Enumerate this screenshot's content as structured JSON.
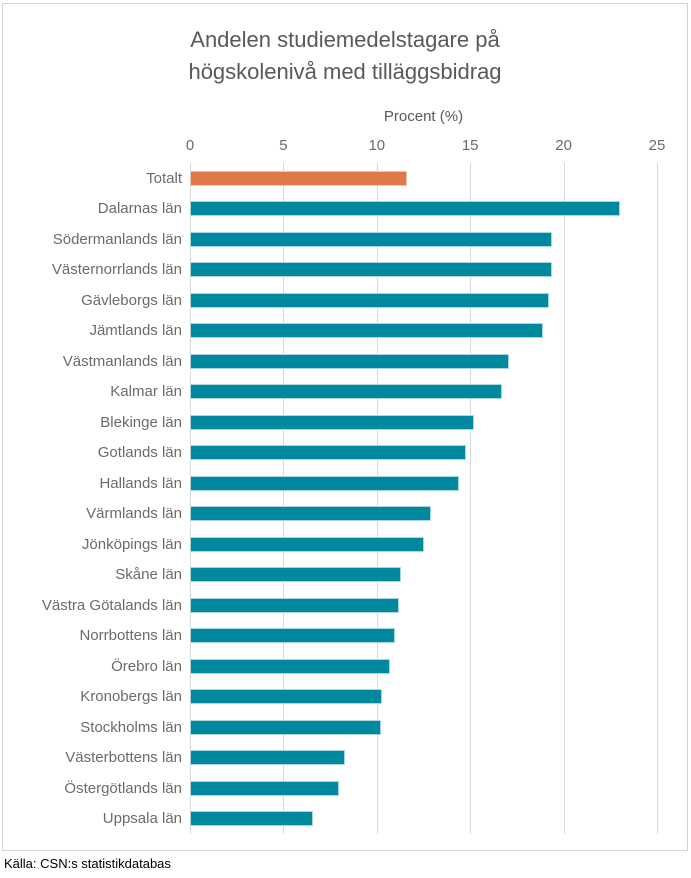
{
  "title_lines": [
    "Andelen studiemedelstagare på",
    "högskolenivå med tilläggsbidrag"
  ],
  "source": "Källa: CSN:s statistikdatabas",
  "colors": {
    "bar_total": "#e0784a",
    "bar_county": "#00899e",
    "grid": "#d9d9d9",
    "border": "#d3d3d3",
    "title_text": "#595959",
    "label_text": "#6b6b6b",
    "source_text": "#000000"
  },
  "chart_data": {
    "type": "bar",
    "orientation": "horizontal",
    "title": "Andelen studiemedelstagare på högskolenivå med tilläggsbidrag",
    "xlabel": "Procent (%)",
    "xlim": [
      0,
      25
    ],
    "xticks": [
      "0",
      "5",
      "10",
      "15",
      "20",
      "25"
    ],
    "grid": "vertical-on",
    "legend": "none",
    "highlight_category": "Totalt",
    "categories": [
      "Totalt",
      "Dalarnas län",
      "Södermanlands län",
      "Västernorrlands län",
      "Gävleborgs län",
      "Jämtlands län",
      "Västmanlands län",
      "Kalmar län",
      "Blekinge län",
      "Gotlands län",
      "Hallands län",
      "Värmlands län",
      "Jönköpings län",
      "Skåne län",
      "Västra Götalands län",
      "Norrbottens län",
      "Örebro län",
      "Kronobergs län",
      "Stockholms län",
      "Västerbottens län",
      "Östergötlands län",
      "Uppsala län"
    ],
    "values": [
      11.6,
      23.0,
      19.4,
      19.4,
      19.2,
      18.9,
      17.1,
      16.7,
      15.2,
      14.8,
      14.4,
      12.9,
      12.5,
      11.3,
      11.2,
      11.0,
      10.7,
      10.3,
      10.2,
      8.3,
      8.0,
      6.6
    ]
  }
}
